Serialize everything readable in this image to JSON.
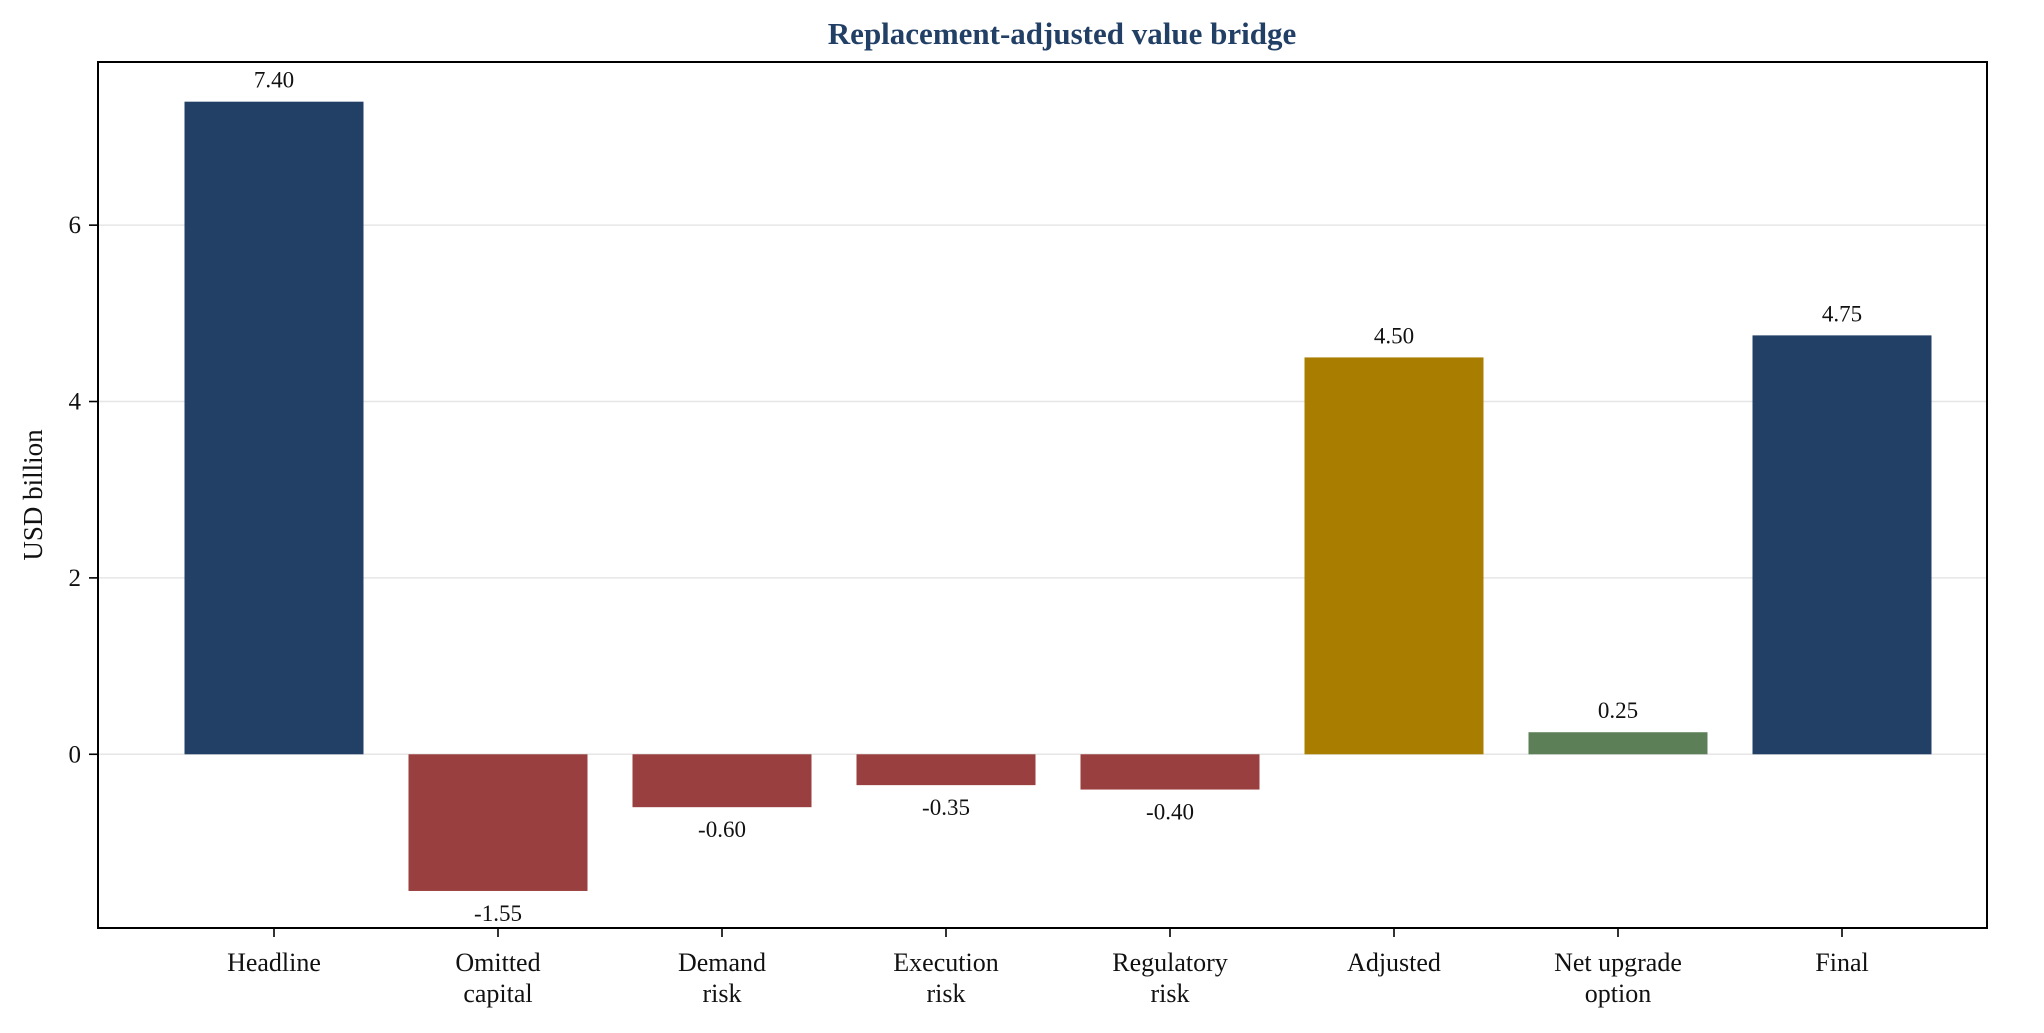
{
  "chart_data": {
    "type": "bar",
    "title": "Replacement-adjusted value bridge",
    "xlabel": "",
    "ylabel": "USD billion",
    "ylim": [
      -1.97,
      7.85
    ],
    "yticks": [
      0,
      2,
      4,
      6
    ],
    "ytick_labels": [
      "0",
      "2",
      "4",
      "6"
    ],
    "grid": "horizontal",
    "legend": "none",
    "categories": [
      [
        "Headline"
      ],
      [
        "Omitted",
        "capital"
      ],
      [
        "Demand",
        "risk"
      ],
      [
        "Execution",
        "risk"
      ],
      [
        "Regulatory",
        "risk"
      ],
      [
        "Adjusted"
      ],
      [
        "Net upgrade",
        "option"
      ],
      [
        "Final"
      ]
    ],
    "values": [
      7.4,
      -1.55,
      -0.6,
      -0.35,
      -0.4,
      4.5,
      0.25,
      4.75
    ],
    "value_labels": [
      "7.40",
      "-1.55",
      "-0.60",
      "-0.35",
      "-0.40",
      "4.50",
      "0.25",
      "4.75"
    ],
    "bar_colors": [
      "#223f66",
      "#9a3f3f",
      "#9a3f3f",
      "#9a3f3f",
      "#9a3f3f",
      "#a87d00",
      "#5d7f58",
      "#223f66"
    ],
    "title_color": "#223f66"
  }
}
